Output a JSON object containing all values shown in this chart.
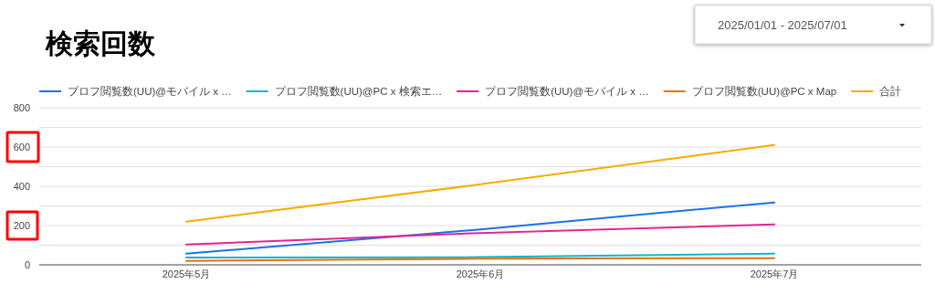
{
  "chart_data": {
    "type": "line",
    "title": "検索回数",
    "annotations": [
      "2025/01/01 - 2025/07/01"
    ],
    "categories": [
      "2025年5月",
      "2025年6月",
      "2025年7月"
    ],
    "series": [
      {
        "name": "プロフ閲覧数(UU)@モバイル x …",
        "color": "#1a73e8",
        "values": [
          57,
          180,
          318
        ]
      },
      {
        "name": "プロフ閲覧数(UU)@PC x 検索エ…",
        "color": "#12b5cb",
        "values": [
          37,
          39,
          57
        ]
      },
      {
        "name": "プロフ閲覧数(UU)@モバイル x …",
        "color": "#e52592",
        "values": [
          104,
          162,
          206
        ]
      },
      {
        "name": "プロフ閲覧数(UU)@PC x Map",
        "color": "#e8710a",
        "values": [
          20,
          31,
          34
        ]
      },
      {
        "name": "合計",
        "color": "#f9ab00",
        "values": [
          220,
          410,
          610
        ]
      }
    ],
    "ylim": [
      0,
      800
    ],
    "yticks": [
      0,
      {
        "value": 100,
        "label": null
      },
      200,
      {
        "value": 300,
        "label": null
      },
      400,
      {
        "value": 500,
        "label": null
      },
      600,
      {
        "value": 700,
        "label": null
      },
      800
    ],
    "grid": "y",
    "legend": "top",
    "marker": "none",
    "line_style": "solid"
  }
}
